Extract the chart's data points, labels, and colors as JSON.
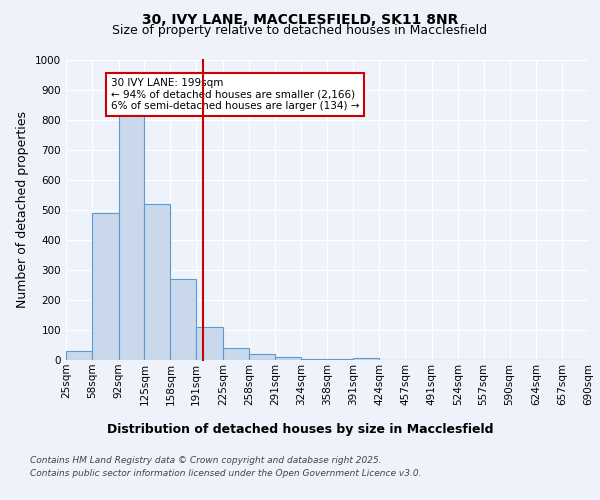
{
  "title_line1": "30, IVY LANE, MACCLESFIELD, SK11 8NR",
  "title_line2": "Size of property relative to detached houses in Macclesfield",
  "xlabel": "Distribution of detached houses by size in Macclesfield",
  "ylabel": "Number of detached properties",
  "bar_edges": [
    25,
    58,
    92,
    125,
    158,
    191,
    225,
    258,
    291,
    324,
    358,
    391,
    424,
    457,
    491,
    524,
    557,
    590,
    624,
    657,
    690
  ],
  "bar_values": [
    30,
    490,
    830,
    520,
    270,
    110,
    40,
    20,
    10,
    5,
    5,
    8,
    0,
    0,
    0,
    0,
    0,
    0,
    0,
    0
  ],
  "bar_color": "#c9d9eb",
  "bar_edge_color": "#5b9bd5",
  "vline_x": 199,
  "vline_color": "#cc0000",
  "annotation_line1": "30 IVY LANE: 199sqm",
  "annotation_line2": "← 94% of detached houses are smaller (2,166)",
  "annotation_line3": "6% of semi-detached houses are larger (134) →",
  "annotation_box_color": "#ffffff",
  "annotation_box_edge_color": "#cc0000",
  "ylim": [
    0,
    1000
  ],
  "yticks": [
    0,
    100,
    200,
    300,
    400,
    500,
    600,
    700,
    800,
    900,
    1000
  ],
  "background_color": "#eef2fa",
  "plot_bg_color": "#eef2fa",
  "grid_color": "#ffffff",
  "footnote_line1": "Contains HM Land Registry data © Crown copyright and database right 2025.",
  "footnote_line2": "Contains public sector information licensed under the Open Government Licence v3.0.",
  "title_fontsize": 10,
  "subtitle_fontsize": 9,
  "axis_label_fontsize": 9,
  "tick_fontsize": 7.5,
  "annotation_fontsize": 7.5,
  "footnote_fontsize": 6.5
}
